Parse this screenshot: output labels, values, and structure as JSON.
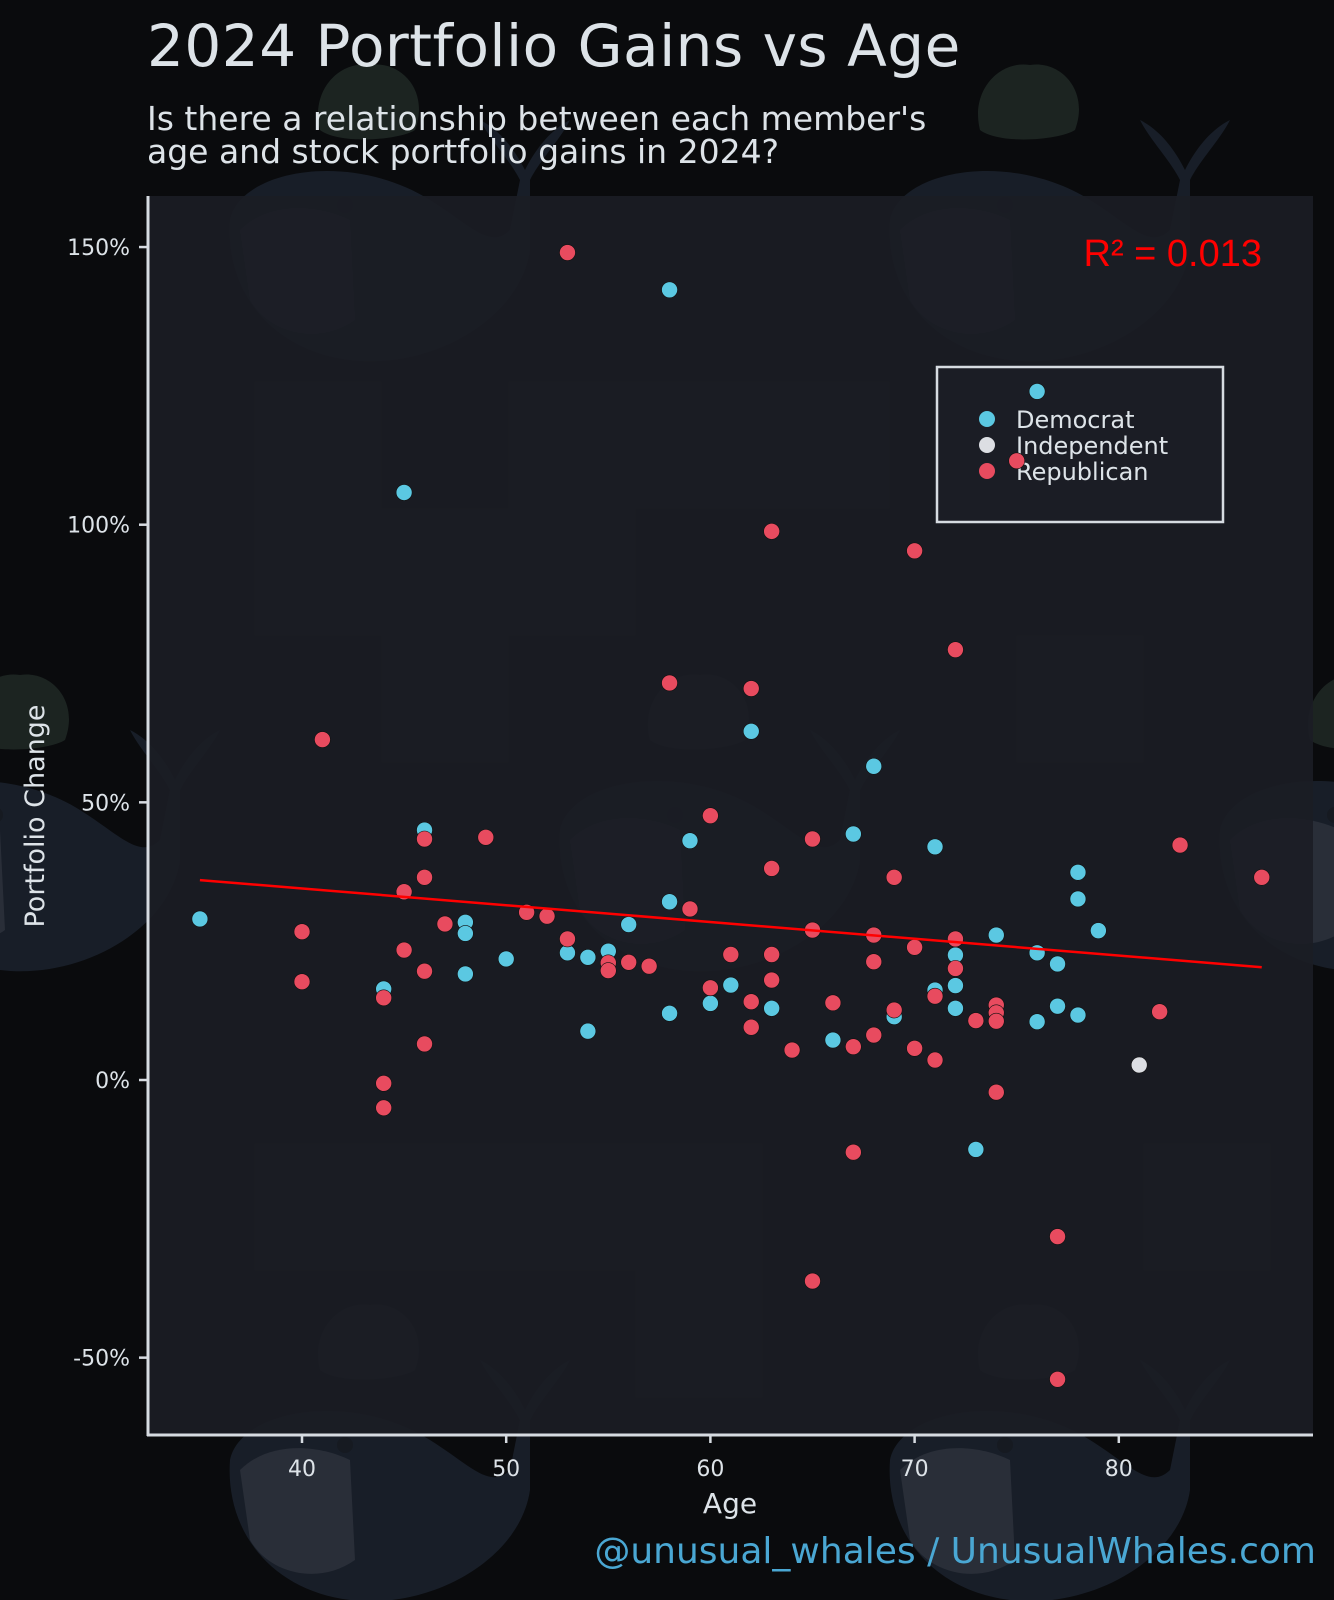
{
  "header": {
    "title": "2024 Portfolio Gains vs Age",
    "subtitle_line1": "Is there a relationship between each member's",
    "subtitle_line2": "age and stock portfolio gains in 2024?"
  },
  "footer": {
    "credit": "@unusual_whales / UnusualWhales.com"
  },
  "colors": {
    "background": "#0a0b0d",
    "panel": "#1b1d25",
    "axis": "#d6dbe1",
    "text": "#dde3e8",
    "democrat": "#5bc8e2",
    "independent": "#dcdee3",
    "republican": "#e84b5f",
    "regression": "#ff0000",
    "footer": "#4aa7d3"
  },
  "chart_data": {
    "type": "scatter",
    "title": "2024 Portfolio Gains vs Age",
    "subtitle": "Is there a relationship between each member's age and stock portfolio gains in 2024?",
    "xlabel": "Age",
    "ylabel": "Portfolio Change",
    "xlim": [
      33,
      90
    ],
    "ylim": [
      -60,
      159
    ],
    "x_ticks": [
      40,
      50,
      60,
      70,
      80
    ],
    "y_ticks": [
      -50,
      0,
      50,
      100,
      150
    ],
    "y_tick_labels": [
      "-50%",
      "0%",
      "50%",
      "100%",
      "150%"
    ],
    "grid": false,
    "legend": {
      "position": "top-right-inside",
      "entries": [
        "Democrat",
        "Independent",
        "Republican"
      ]
    },
    "annotation": {
      "text": "R² = 0.013",
      "color": "#ff0000"
    },
    "regression_line": {
      "x": [
        35,
        87
      ],
      "y": [
        36.0,
        20.3
      ]
    },
    "series": [
      {
        "name": "Democrat",
        "color": "#5bc8e2",
        "points": [
          [
            35,
            29.0
          ],
          [
            44,
            16.4
          ],
          [
            45,
            105.8
          ],
          [
            46,
            45.0
          ],
          [
            48,
            28.4
          ],
          [
            48,
            26.4
          ],
          [
            48,
            19.1
          ],
          [
            50,
            21.8
          ],
          [
            53,
            22.9
          ],
          [
            54,
            22.1
          ],
          [
            54,
            8.8
          ],
          [
            55,
            23.2
          ],
          [
            56,
            28.0
          ],
          [
            58,
            142.3
          ],
          [
            58,
            32.1
          ],
          [
            58,
            12.0
          ],
          [
            59,
            43.1
          ],
          [
            60,
            13.8
          ],
          [
            61,
            17.1
          ],
          [
            62,
            62.8
          ],
          [
            63,
            12.9
          ],
          [
            66,
            7.2
          ],
          [
            67,
            44.3
          ],
          [
            68,
            56.5
          ],
          [
            69,
            11.4
          ],
          [
            71,
            42.0
          ],
          [
            71,
            16.2
          ],
          [
            72,
            22.5
          ],
          [
            72,
            17.0
          ],
          [
            72,
            12.9
          ],
          [
            73,
            -12.5
          ],
          [
            74,
            26.1
          ],
          [
            76,
            124.0
          ],
          [
            76,
            22.9
          ],
          [
            76,
            10.5
          ],
          [
            77,
            20.9
          ],
          [
            77,
            13.3
          ],
          [
            78,
            37.4
          ],
          [
            78,
            32.6
          ],
          [
            78,
            11.7
          ],
          [
            79,
            26.9
          ]
        ]
      },
      {
        "name": "Independent",
        "color": "#dcdee3",
        "points": [
          [
            81,
            2.7
          ]
        ]
      },
      {
        "name": "Republican",
        "color": "#e84b5f",
        "points": [
          [
            40,
            26.7
          ],
          [
            40,
            17.7
          ],
          [
            41,
            61.3
          ],
          [
            44,
            14.8
          ],
          [
            44,
            -0.6
          ],
          [
            44,
            -5.0
          ],
          [
            45,
            33.9
          ],
          [
            45,
            23.4
          ],
          [
            46,
            43.4
          ],
          [
            46,
            36.5
          ],
          [
            46,
            19.6
          ],
          [
            46,
            6.5
          ],
          [
            47,
            28.1
          ],
          [
            49,
            43.7
          ],
          [
            51,
            30.2
          ],
          [
            52,
            29.5
          ],
          [
            53,
            149.0
          ],
          [
            53,
            25.4
          ],
          [
            55,
            21.1
          ],
          [
            55,
            19.7
          ],
          [
            56,
            21.2
          ],
          [
            57,
            20.5
          ],
          [
            58,
            71.5
          ],
          [
            59,
            30.8
          ],
          [
            60,
            47.6
          ],
          [
            60,
            16.6
          ],
          [
            62,
            70.5
          ],
          [
            62,
            14.1
          ],
          [
            62,
            9.5
          ],
          [
            61,
            22.6
          ],
          [
            63,
            98.8
          ],
          [
            63,
            38.1
          ],
          [
            63,
            22.6
          ],
          [
            63,
            18.0
          ],
          [
            64,
            5.4
          ],
          [
            65,
            43.4
          ],
          [
            65,
            27.0
          ],
          [
            65,
            -36.2
          ],
          [
            66,
            13.9
          ],
          [
            67,
            6.0
          ],
          [
            67,
            -13.0
          ],
          [
            68,
            26.1
          ],
          [
            68,
            21.3
          ],
          [
            68,
            8.1
          ],
          [
            69,
            36.5
          ],
          [
            69,
            12.6
          ],
          [
            70,
            95.3
          ],
          [
            70,
            23.9
          ],
          [
            70,
            5.7
          ],
          [
            71,
            15.1
          ],
          [
            71,
            3.6
          ],
          [
            72,
            77.5
          ],
          [
            72,
            25.4
          ],
          [
            72,
            20.1
          ],
          [
            73,
            10.7
          ],
          [
            74,
            13.5
          ],
          [
            74,
            12.1
          ],
          [
            74,
            10.6
          ],
          [
            74,
            -2.2
          ],
          [
            75,
            111.5
          ],
          [
            77,
            -28.2
          ],
          [
            77,
            -53.9
          ],
          [
            82,
            12.3
          ],
          [
            83,
            42.3
          ],
          [
            87,
            36.5
          ]
        ]
      }
    ]
  }
}
